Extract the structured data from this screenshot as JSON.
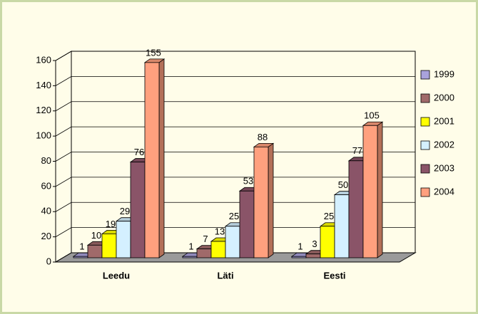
{
  "chart_data": {
    "type": "bar3d",
    "categories": [
      "Leedu",
      "Läti",
      "Eesti"
    ],
    "series": [
      {
        "name": "1999",
        "color": "#a9a2dc",
        "values": [
          1,
          1,
          1
        ]
      },
      {
        "name": "2000",
        "color": "#a06a6a",
        "values": [
          10,
          7,
          3
        ]
      },
      {
        "name": "2001",
        "color": "#ffff00",
        "values": [
          19,
          13,
          25
        ]
      },
      {
        "name": "2002",
        "color": "#d4f0ff",
        "values": [
          29,
          25,
          50
        ]
      },
      {
        "name": "2003",
        "color": "#8a5468",
        "values": [
          76,
          53,
          77
        ]
      },
      {
        "name": "2004",
        "color": "#ffa07e",
        "values": [
          155,
          88,
          105
        ]
      }
    ],
    "ylim": [
      0,
      160
    ],
    "yticks": [
      0,
      20,
      40,
      60,
      80,
      100,
      120,
      140,
      160
    ],
    "grid": true,
    "legend": "right"
  }
}
